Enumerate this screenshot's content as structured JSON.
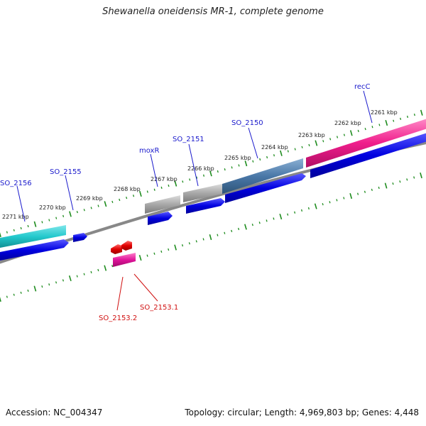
{
  "title": "Shewanella oneidensis MR-1, complete genome",
  "accession": "Accession: NC_004347",
  "summary": "Topology: circular; Length: 4,969,803 bp; Genes: 4,448",
  "ruler_labels": [
    "2271 kbp",
    "2270 kbp",
    "2269 kbp",
    "2268 kbp",
    "2267 kbp",
    "2266 kbp",
    "2265 kbp",
    "2264 kbp",
    "2263 kbp",
    "2262 kbp",
    "2261 kbp"
  ],
  "gene_labels": {
    "so_2156": "SO_2156",
    "so_2155": "SO_2155",
    "moxr": "moxR",
    "so_2151": "SO_2151",
    "so_2150": "SO_2150",
    "recc": "recC",
    "so_2153_1": "SO_2153.1",
    "so_2153_2": "SO_2153.2"
  },
  "colors": {
    "forward_gene": "#0000e0",
    "reverse_gene": "#e00000",
    "cyan_feature": "#22c8cc",
    "steel_feature": "#4a78a8",
    "gray_feature": "#a8a8a8",
    "pink_feature": "#f01e8c",
    "magenta_feature": "#e0149a",
    "backbone": "#888888",
    "tick": "#1e8c1e",
    "forward_label": "#1a1acc",
    "reverse_label": "#d01010"
  }
}
